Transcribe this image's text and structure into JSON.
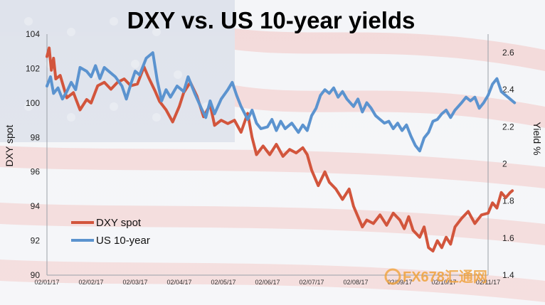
{
  "chart_data": {
    "type": "line",
    "title": "DXY vs. US 10-year yields",
    "ylabel": "DXY spot",
    "y2label": "Yield  %",
    "ylim": [
      90,
      104
    ],
    "y2lim": [
      1.4,
      2.7
    ],
    "yticks": [
      "90",
      "92",
      "94",
      "96",
      "98",
      "100",
      "102",
      "104"
    ],
    "y2ticks": [
      "1.4",
      "1.6",
      "1.8",
      "2",
      "2.2",
      "2.4",
      "2.6"
    ],
    "x_labels": [
      "02/01/17",
      "02/02/17",
      "02/03/17",
      "02/04/17",
      "02/05/17",
      "02/06/17",
      "02/07/17",
      "02/08/17",
      "02/09/17",
      "02/10/17",
      "02/11/17"
    ],
    "legend_position": "bottom-left",
    "series": [
      {
        "name": "DXY spot",
        "color": "#d2553c",
        "axis": "left",
        "values": [
          [
            0,
            102.7
          ],
          [
            0.05,
            103.2
          ],
          [
            0.1,
            101.9
          ],
          [
            0.15,
            102.6
          ],
          [
            0.2,
            101.4
          ],
          [
            0.3,
            101.6
          ],
          [
            0.45,
            100.3
          ],
          [
            0.6,
            100.6
          ],
          [
            0.75,
            99.6
          ],
          [
            0.9,
            100.2
          ],
          [
            1.0,
            100.0
          ],
          [
            1.15,
            101.0
          ],
          [
            1.3,
            101.2
          ],
          [
            1.45,
            100.8
          ],
          [
            1.6,
            101.2
          ],
          [
            1.75,
            101.4
          ],
          [
            1.9,
            101.0
          ],
          [
            2.05,
            101.1
          ],
          [
            2.2,
            102.1
          ],
          [
            2.3,
            101.5
          ],
          [
            2.45,
            100.7
          ],
          [
            2.55,
            100.1
          ],
          [
            2.7,
            99.6
          ],
          [
            2.85,
            98.9
          ],
          [
            3.0,
            99.8
          ],
          [
            3.1,
            100.6
          ],
          [
            3.25,
            101.2
          ],
          [
            3.4,
            100.4
          ],
          [
            3.55,
            99.2
          ],
          [
            3.7,
            99.9
          ],
          [
            3.8,
            98.7
          ],
          [
            3.95,
            99.0
          ],
          [
            4.1,
            98.8
          ],
          [
            4.25,
            99.0
          ],
          [
            4.4,
            98.3
          ],
          [
            4.55,
            99.4
          ],
          [
            4.65,
            98.0
          ],
          [
            4.75,
            97.0
          ],
          [
            4.9,
            97.5
          ],
          [
            5.05,
            97.0
          ],
          [
            5.2,
            97.6
          ],
          [
            5.35,
            96.9
          ],
          [
            5.5,
            97.3
          ],
          [
            5.65,
            97.1
          ],
          [
            5.8,
            97.4
          ],
          [
            5.9,
            97.0
          ],
          [
            6.0,
            96.1
          ],
          [
            6.15,
            95.2
          ],
          [
            6.3,
            96.0
          ],
          [
            6.4,
            95.4
          ],
          [
            6.55,
            95.0
          ],
          [
            6.7,
            94.4
          ],
          [
            6.85,
            95.0
          ],
          [
            6.95,
            94.0
          ],
          [
            7.05,
            93.4
          ],
          [
            7.15,
            92.8
          ],
          [
            7.25,
            93.2
          ],
          [
            7.4,
            93.0
          ],
          [
            7.55,
            93.5
          ],
          [
            7.7,
            92.9
          ],
          [
            7.85,
            93.6
          ],
          [
            8.0,
            93.2
          ],
          [
            8.1,
            92.7
          ],
          [
            8.2,
            93.4
          ],
          [
            8.3,
            92.6
          ],
          [
            8.45,
            92.2
          ],
          [
            8.55,
            92.8
          ],
          [
            8.65,
            91.6
          ],
          [
            8.75,
            91.4
          ],
          [
            8.85,
            92.0
          ],
          [
            8.95,
            91.6
          ],
          [
            9.05,
            92.2
          ],
          [
            9.15,
            91.8
          ],
          [
            9.25,
            92.8
          ],
          [
            9.4,
            93.3
          ],
          [
            9.55,
            93.7
          ],
          [
            9.7,
            93.0
          ],
          [
            9.85,
            93.5
          ],
          [
            10.0,
            93.6
          ],
          [
            10.1,
            94.2
          ],
          [
            10.2,
            93.9
          ],
          [
            10.3,
            94.8
          ],
          [
            10.4,
            94.5
          ],
          [
            10.5,
            94.8
          ],
          [
            10.55,
            94.9
          ]
        ]
      },
      {
        "name": "US 10-year",
        "color": "#5b93cf",
        "axis": "right",
        "values": [
          [
            0,
            2.42
          ],
          [
            0.08,
            2.47
          ],
          [
            0.15,
            2.38
          ],
          [
            0.25,
            2.41
          ],
          [
            0.35,
            2.35
          ],
          [
            0.45,
            2.39
          ],
          [
            0.55,
            2.44
          ],
          [
            0.65,
            2.4
          ],
          [
            0.75,
            2.52
          ],
          [
            0.9,
            2.5
          ],
          [
            1.0,
            2.47
          ],
          [
            1.1,
            2.53
          ],
          [
            1.2,
            2.46
          ],
          [
            1.3,
            2.52
          ],
          [
            1.4,
            2.5
          ],
          [
            1.55,
            2.47
          ],
          [
            1.7,
            2.42
          ],
          [
            1.8,
            2.35
          ],
          [
            1.9,
            2.43
          ],
          [
            2.0,
            2.5
          ],
          [
            2.1,
            2.48
          ],
          [
            2.25,
            2.57
          ],
          [
            2.4,
            2.6
          ],
          [
            2.5,
            2.45
          ],
          [
            2.6,
            2.34
          ],
          [
            2.7,
            2.4
          ],
          [
            2.8,
            2.36
          ],
          [
            2.95,
            2.42
          ],
          [
            3.1,
            2.39
          ],
          [
            3.2,
            2.47
          ],
          [
            3.35,
            2.38
          ],
          [
            3.5,
            2.3
          ],
          [
            3.6,
            2.25
          ],
          [
            3.7,
            2.34
          ],
          [
            3.8,
            2.27
          ],
          [
            3.95,
            2.35
          ],
          [
            4.1,
            2.4
          ],
          [
            4.2,
            2.44
          ],
          [
            4.3,
            2.37
          ],
          [
            4.4,
            2.31
          ],
          [
            4.55,
            2.24
          ],
          [
            4.65,
            2.29
          ],
          [
            4.75,
            2.22
          ],
          [
            4.85,
            2.19
          ],
          [
            5.0,
            2.2
          ],
          [
            5.1,
            2.24
          ],
          [
            5.2,
            2.18
          ],
          [
            5.3,
            2.23
          ],
          [
            5.4,
            2.19
          ],
          [
            5.55,
            2.22
          ],
          [
            5.7,
            2.17
          ],
          [
            5.8,
            2.21
          ],
          [
            5.9,
            2.18
          ],
          [
            6.0,
            2.26
          ],
          [
            6.1,
            2.3
          ],
          [
            6.2,
            2.37
          ],
          [
            6.3,
            2.4
          ],
          [
            6.4,
            2.38
          ],
          [
            6.5,
            2.41
          ],
          [
            6.6,
            2.36
          ],
          [
            6.7,
            2.39
          ],
          [
            6.8,
            2.35
          ],
          [
            6.95,
            2.31
          ],
          [
            7.05,
            2.35
          ],
          [
            7.15,
            2.28
          ],
          [
            7.25,
            2.33
          ],
          [
            7.35,
            2.3
          ],
          [
            7.45,
            2.26
          ],
          [
            7.55,
            2.24
          ],
          [
            7.65,
            2.22
          ],
          [
            7.75,
            2.23
          ],
          [
            7.85,
            2.19
          ],
          [
            7.95,
            2.22
          ],
          [
            8.05,
            2.18
          ],
          [
            8.15,
            2.21
          ],
          [
            8.25,
            2.15
          ],
          [
            8.35,
            2.1
          ],
          [
            8.45,
            2.07
          ],
          [
            8.55,
            2.14
          ],
          [
            8.65,
            2.17
          ],
          [
            8.75,
            2.23
          ],
          [
            8.85,
            2.24
          ],
          [
            8.95,
            2.27
          ],
          [
            9.05,
            2.29
          ],
          [
            9.15,
            2.25
          ],
          [
            9.25,
            2.29
          ],
          [
            9.4,
            2.33
          ],
          [
            9.5,
            2.36
          ],
          [
            9.6,
            2.34
          ],
          [
            9.7,
            2.36
          ],
          [
            9.8,
            2.3
          ],
          [
            9.9,
            2.33
          ],
          [
            10.0,
            2.37
          ],
          [
            10.1,
            2.43
          ],
          [
            10.2,
            2.46
          ],
          [
            10.3,
            2.39
          ],
          [
            10.4,
            2.37
          ],
          [
            10.5,
            2.35
          ],
          [
            10.6,
            2.33
          ]
        ]
      }
    ]
  },
  "watermark": "FX678汇通网"
}
